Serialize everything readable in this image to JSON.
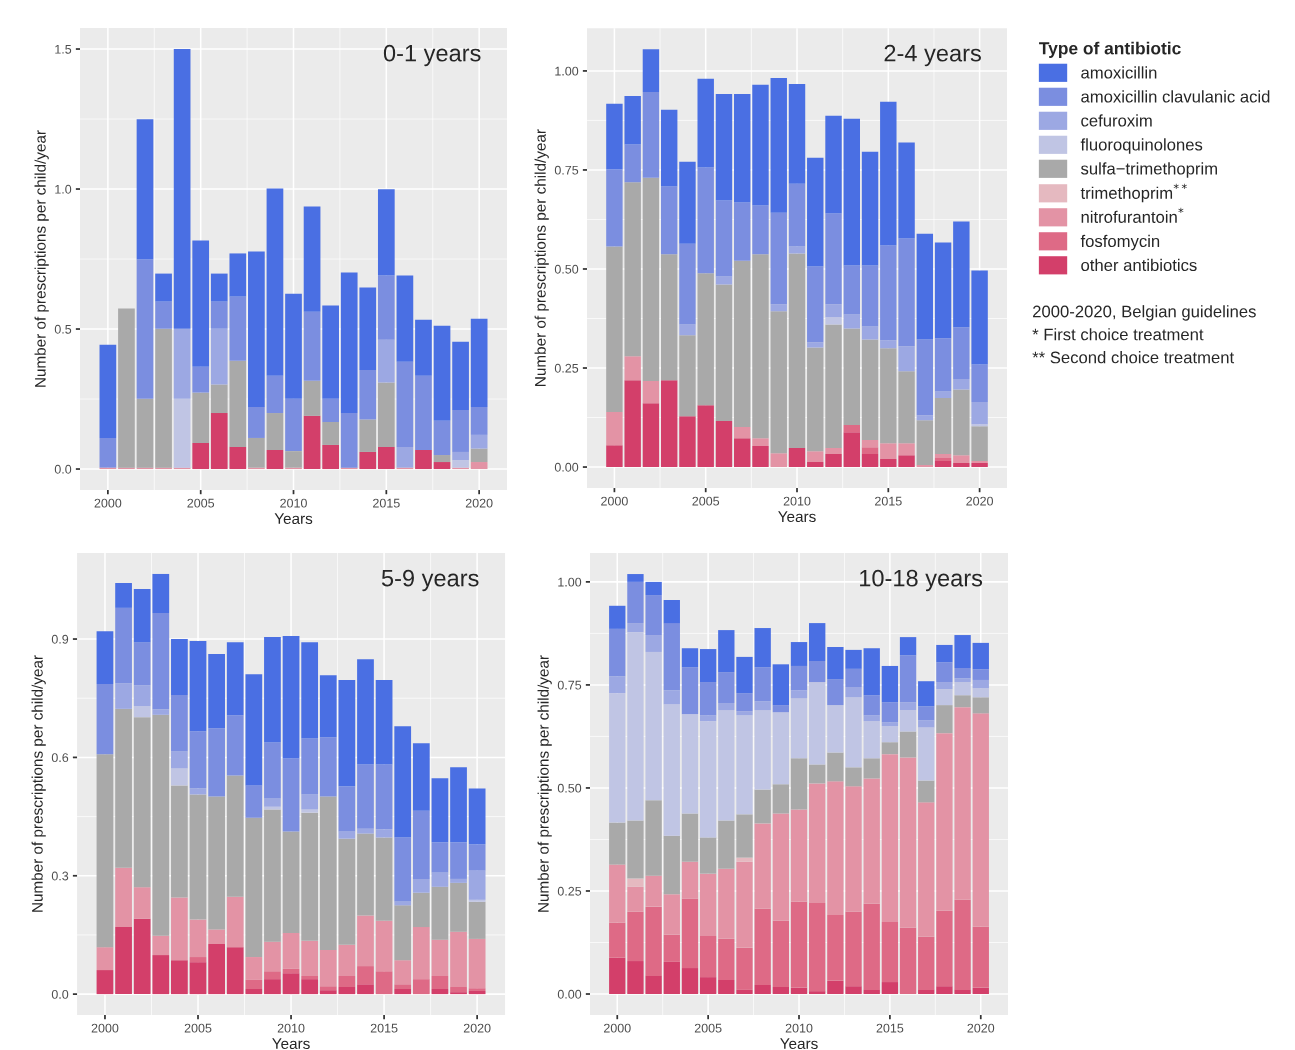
{
  "chart_data": [
    {
      "type": "bar",
      "stacked": true,
      "title": "0-1 years",
      "xlabel": "Years",
      "ylabel": "Number of prescriptions per child/year",
      "grid": true,
      "x": [
        2000,
        2001,
        2002,
        2003,
        2004,
        2005,
        2006,
        2007,
        2008,
        2009,
        2010,
        2011,
        2012,
        2013,
        2014,
        2015,
        2016,
        2017,
        2018,
        2019,
        2020
      ],
      "xlim": [
        1998.5,
        2021.5
      ],
      "xticks": [
        2000,
        2005,
        2010,
        2015,
        2020
      ],
      "ylim": [
        -0.075,
        1.575
      ],
      "yticks": [
        {
          "value": 0,
          "label": "0.0"
        },
        0.5,
        {
          "value": 1,
          "label": "1.0"
        },
        1.5
      ],
      "series": [
        {
          "color": "#d33f6a",
          "values": [
            null,
            null,
            null,
            null,
            null,
            0.093,
            0.2,
            0.079,
            null,
            0.068,
            null,
            0.19,
            0.086,
            null,
            0.061,
            0.079,
            null,
            0.068,
            0.025,
            null,
            null
          ]
        },
        {
          "color": "#e393a5",
          "values": [
            0.005,
            0.005,
            0.005,
            0.005,
            0.005,
            null,
            null,
            null,
            0.005,
            null,
            0.005,
            null,
            null,
            0.005,
            null,
            null,
            0.005,
            null,
            null,
            0.005,
            0.025
          ]
        },
        {
          "color": "#a9a9a9",
          "values": [
            null,
            0.568,
            0.246,
            0.496,
            null,
            0.18,
            0.102,
            0.308,
            0.106,
            0.132,
            0.059,
            0.125,
            0.082,
            null,
            0.116,
            0.23,
            null,
            null,
            0.025,
            null,
            0.048
          ]
        },
        {
          "color": "#c0c5e4",
          "values": [
            null,
            null,
            null,
            null,
            0.246,
            null,
            null,
            null,
            null,
            null,
            null,
            null,
            null,
            null,
            null,
            null,
            null,
            null,
            null,
            0.027,
            null
          ]
        },
        {
          "color": "#9ca8e3",
          "values": [
            null,
            null,
            null,
            null,
            0.25,
            null,
            0.199,
            null,
            null,
            null,
            null,
            null,
            null,
            null,
            null,
            0.153,
            0.074,
            null,
            null,
            0.029,
            0.049
          ]
        },
        {
          "color": "#7b8ee0",
          "values": [
            0.106,
            null,
            0.497,
            0.097,
            null,
            0.092,
            0.097,
            0.229,
            0.111,
            0.133,
            0.187,
            0.247,
            0.083,
            0.195,
            0.177,
            0.229,
            0.304,
            0.265,
            0.122,
            0.15,
            0.1
          ]
        },
        {
          "color": "#4a6fe3",
          "values": [
            0.333,
            null,
            0.501,
            0.1,
            0.999,
            0.451,
            0.1,
            0.154,
            0.555,
            0.669,
            0.375,
            0.376,
            0.333,
            0.502,
            0.294,
            0.308,
            0.308,
            0.2,
            0.34,
            0.244,
            0.315
          ]
        }
      ]
    },
    {
      "type": "bar",
      "stacked": true,
      "title": "2-4 years",
      "xlabel": "Years",
      "ylabel": "Number of prescriptions per child/year",
      "grid": true,
      "legend": "right",
      "legend_title": "Type of antibiotic",
      "annotations": [
        "2000-2020, Belgian guidelines",
        "* First choice treatment",
        "** Second choice treatment"
      ],
      "x": [
        2000,
        2001,
        2002,
        2003,
        2004,
        2005,
        2006,
        2007,
        2008,
        2009,
        2010,
        2011,
        2012,
        2013,
        2014,
        2015,
        2016,
        2017,
        2018,
        2019,
        2020
      ],
      "xlim": [
        1998.5,
        2021.5
      ],
      "xticks": [
        2000,
        2005,
        2010,
        2015,
        2020
      ],
      "ylim": [
        -0.053,
        1.108
      ],
      "yticks": [
        {
          "value": 0,
          "label": "0.00"
        },
        {
          "value": 0.25,
          "label": "0.25"
        },
        {
          "value": 0.5,
          "label": "0.50"
        },
        {
          "value": 0.75,
          "label": "0.75"
        },
        {
          "value": 1,
          "label": "1.00"
        }
      ],
      "series": [
        {
          "name": "other antibiotics",
          "color": "#d33f6a",
          "values": [
            0.055,
            0.219,
            0.161,
            0.219,
            0.128,
            0.156,
            0.116,
            0.073,
            0.053,
            null,
            0.048,
            0.013,
            0.033,
            0.088,
            0.033,
            0.02,
            0.03,
            null,
            0.015,
            0.01,
            0.01
          ]
        },
        {
          "name": "fosfomycin",
          "color": "#de6a86",
          "values": [
            null,
            null,
            null,
            null,
            null,
            null,
            null,
            null,
            null,
            null,
            null,
            null,
            null,
            0.018,
            0.017,
            null,
            null,
            null,
            0.008,
            null,
            null
          ]
        },
        {
          "name": "nitrofurantoin$^{*}$",
          "color": "#e393a5",
          "values": [
            0.084,
            0.061,
            0.056,
            null,
            null,
            null,
            null,
            0.028,
            0.02,
            0.035,
            null,
            0.027,
            0.015,
            null,
            0.018,
            0.04,
            0.03,
            0.005,
            0.01,
            0.02,
            0.005
          ]
        },
        {
          "name": "trimethoprim$^{**}$",
          "color": "#e5b9c0",
          "values": [
            null,
            null,
            null,
            null,
            null,
            null,
            null,
            null,
            null,
            null,
            null,
            null,
            null,
            null,
            null,
            null,
            null,
            null,
            null,
            null,
            null
          ]
        },
        {
          "name": "sulfa−trimethoprim",
          "color": "#a9a9a9",
          "values": [
            0.418,
            0.439,
            0.513,
            0.318,
            0.205,
            0.333,
            0.345,
            0.42,
            0.464,
            0.358,
            0.491,
            0.262,
            0.312,
            0.244,
            0.254,
            0.24,
            0.182,
            0.113,
            0.141,
            0.166,
            0.088
          ]
        },
        {
          "name": "fluoroquinolones",
          "color": "#c0c5e4",
          "values": [
            null,
            null,
            null,
            null,
            null,
            null,
            null,
            null,
            null,
            null,
            null,
            null,
            0.018,
            null,
            null,
            null,
            null,
            null,
            null,
            null,
            0.005
          ]
        },
        {
          "name": "cefuroxim",
          "color": "#9ca8e3",
          "values": [
            null,
            null,
            null,
            null,
            0.027,
            null,
            0.02,
            null,
            null,
            0.018,
            0.018,
            0.013,
            0.033,
            0.035,
            0.033,
            0.02,
            0.063,
            0.013,
            0.017,
            0.026,
            0.056
          ]
        },
        {
          "name": "amoxicillin clavulanic acid",
          "color": "#7b8ee0",
          "values": [
            0.194,
            0.095,
            0.217,
            0.171,
            0.204,
            0.267,
            0.192,
            0.147,
            0.123,
            0.231,
            0.158,
            0.191,
            0.229,
            0.124,
            0.154,
            0.239,
            0.272,
            0.191,
            0.134,
            0.131,
            0.095
          ]
        },
        {
          "name": "amoxicillin",
          "color": "#4a6fe3",
          "values": [
            0.166,
            0.123,
            0.108,
            0.194,
            0.207,
            0.224,
            0.269,
            0.274,
            0.305,
            0.34,
            0.252,
            0.275,
            0.247,
            0.37,
            0.287,
            0.363,
            0.242,
            0.267,
            0.242,
            0.267,
            0.237
          ]
        }
      ]
    },
    {
      "type": "bar",
      "stacked": true,
      "title": "5-9 years",
      "xlabel": "Years",
      "ylabel": "Number of prescriptions per child/year",
      "grid": true,
      "x": [
        2000,
        2001,
        2002,
        2003,
        2004,
        2005,
        2006,
        2007,
        2008,
        2009,
        2010,
        2011,
        2012,
        2013,
        2014,
        2015,
        2016,
        2017,
        2018,
        2019,
        2020
      ],
      "xlim": [
        1998.5,
        2021.5
      ],
      "xticks": [
        2000,
        2005,
        2010,
        2015,
        2020
      ],
      "ylim": [
        -0.053,
        1.118
      ],
      "yticks": [
        {
          "value": 0,
          "label": "0.0"
        },
        0.3,
        0.6,
        0.9
      ],
      "series": [
        {
          "color": "#d33f6a",
          "values": [
            0.061,
            0.17,
            0.191,
            0.099,
            0.086,
            0.081,
            0.127,
            0.119,
            0.013,
            0.038,
            0.053,
            0.038,
            0.01,
            0.018,
            0.025,
            null,
            0.013,
            null,
            0.013,
            0.005,
            0.008
          ]
        },
        {
          "color": "#de6a86",
          "values": [
            null,
            null,
            null,
            null,
            null,
            0.013,
            null,
            null,
            0.023,
            0.02,
            0.011,
            0.008,
            0.01,
            0.028,
            0.046,
            0.058,
            0.012,
            0.038,
            0.033,
            0.013,
            0.007
          ]
        },
        {
          "color": "#e393a5",
          "values": [
            0.058,
            0.15,
            0.08,
            0.049,
            0.159,
            0.095,
            0.037,
            0.128,
            0.058,
            0.075,
            0.091,
            0.089,
            0.092,
            0.079,
            0.128,
            0.128,
            0.061,
            0.132,
            0.092,
            0.14,
            0.125
          ]
        },
        {
          "color": "#a9a9a9",
          "values": [
            0.489,
            0.403,
            0.431,
            0.56,
            0.284,
            0.317,
            0.337,
            0.307,
            0.353,
            0.335,
            0.257,
            0.325,
            0.389,
            0.269,
            0.208,
            0.211,
            0.139,
            0.087,
            0.134,
            0.124,
            0.094
          ]
        },
        {
          "color": "#c0c5e4",
          "values": [
            null,
            null,
            0.028,
            null,
            0.043,
            null,
            null,
            null,
            null,
            0.007,
            null,
            0.008,
            null,
            null,
            null,
            null,
            null,
            null,
            null,
            null,
            0.005
          ]
        },
        {
          "color": "#9ca8e3",
          "values": [
            null,
            0.065,
            0.053,
            0.014,
            0.043,
            0.015,
            null,
            null,
            null,
            0.021,
            null,
            0.038,
            null,
            0.018,
            0.012,
            0.02,
            0.01,
            0.035,
            0.036,
            0.01,
            0.074
          ]
        },
        {
          "color": "#7b8ee0",
          "values": [
            0.178,
            0.191,
            0.109,
            0.244,
            0.143,
            0.145,
            0.173,
            0.153,
            0.082,
            0.142,
            0.185,
            0.142,
            0.15,
            0.114,
            0.163,
            0.165,
            0.162,
            0.173,
            0.076,
            0.092,
            0.066
          ]
        },
        {
          "color": "#4a6fe3",
          "values": [
            0.134,
            0.063,
            0.135,
            0.099,
            0.142,
            0.229,
            0.188,
            0.185,
            0.282,
            0.267,
            0.311,
            0.244,
            0.157,
            0.27,
            0.267,
            0.214,
            0.282,
            0.171,
            0.163,
            0.191,
            0.142
          ]
        }
      ]
    },
    {
      "type": "bar",
      "stacked": true,
      "title": "10-18 years",
      "xlabel": "Years",
      "ylabel": "Number of prescriptions per child/year",
      "grid": true,
      "x": [
        2000,
        2001,
        2002,
        2003,
        2004,
        2005,
        2006,
        2007,
        2008,
        2009,
        2010,
        2011,
        2012,
        2013,
        2014,
        2015,
        2016,
        2017,
        2018,
        2019,
        2020
      ],
      "xlim": [
        1998.5,
        2021.5
      ],
      "xticks": [
        2000,
        2005,
        2010,
        2015,
        2020
      ],
      "ylim": [
        -0.051,
        1.07
      ],
      "yticks": [
        {
          "value": 0,
          "label": "0.00"
        },
        {
          "value": 0.25,
          "label": "0.25"
        },
        {
          "value": 0.5,
          "label": "0.50"
        },
        {
          "value": 0.75,
          "label": "0.75"
        },
        {
          "value": 1,
          "label": "1.00"
        }
      ],
      "series": [
        {
          "color": "#d33f6a",
          "values": [
            0.088,
            0.08,
            0.044,
            0.078,
            0.063,
            0.041,
            0.034,
            0.01,
            0.022,
            0.017,
            0.015,
            0.007,
            0.032,
            0.019,
            0.01,
            0.029,
            null,
            0.01,
            0.019,
            0.01,
            0.015
          ]
        },
        {
          "color": "#de6a86",
          "values": [
            0.085,
            0.12,
            0.168,
            0.066,
            0.168,
            0.1,
            0.1,
            0.102,
            0.185,
            0.161,
            0.209,
            0.214,
            0.16,
            0.181,
            0.209,
            0.146,
            0.161,
            0.129,
            0.183,
            0.219,
            0.148
          ]
        },
        {
          "color": "#e393a5",
          "values": [
            0.141,
            0.06,
            0.075,
            0.098,
            0.09,
            0.151,
            0.17,
            0.209,
            0.207,
            0.26,
            0.224,
            0.29,
            0.324,
            0.304,
            0.304,
            0.407,
            0.413,
            0.326,
            0.431,
            0.467,
            0.518
          ]
        },
        {
          "color": "#e5b9c0",
          "values": [
            null,
            0.02,
            null,
            null,
            null,
            null,
            null,
            0.01,
            null,
            null,
            null,
            null,
            null,
            null,
            null,
            null,
            null,
            null,
            null,
            null,
            null
          ]
        },
        {
          "color": "#a9a9a9",
          "values": [
            0.102,
            0.141,
            0.183,
            0.142,
            0.117,
            0.088,
            0.117,
            0.105,
            0.082,
            0.071,
            0.124,
            0.046,
            0.07,
            0.046,
            0.049,
            0.029,
            0.063,
            0.053,
            0.068,
            0.029,
            0.039
          ]
        },
        {
          "color": "#c0c5e4",
          "values": [
            0.314,
            0.457,
            0.36,
            0.319,
            0.241,
            0.282,
            0.268,
            0.24,
            0.193,
            0.175,
            0.146,
            0.2,
            0.115,
            0.17,
            0.09,
            0.039,
            0.052,
            0.129,
            0.039,
            0.032,
            0.022
          ]
        },
        {
          "color": "#9ca8e3",
          "values": [
            0.041,
            0.022,
            0.041,
            0.034,
            null,
            0.014,
            0.017,
            0.01,
            0.021,
            null,
            0.019,
            null,
            null,
            0.025,
            0.014,
            0.009,
            0.019,
            0.017,
            0.017,
            0.009,
            0.02
          ]
        },
        {
          "color": "#7b8ee0",
          "values": [
            0.115,
            0.1,
            0.097,
            0.163,
            0.114,
            0.081,
            0.075,
            0.044,
            0.083,
            0.017,
            0.059,
            0.051,
            0.063,
            0.044,
            0.049,
            0.049,
            0.114,
            0.034,
            0.048,
            0.025,
            0.026
          ]
        },
        {
          "color": "#4a6fe3",
          "values": [
            0.056,
            0.019,
            0.032,
            0.056,
            0.046,
            0.08,
            0.102,
            0.088,
            0.095,
            0.099,
            0.058,
            0.092,
            0.078,
            0.046,
            0.114,
            0.088,
            0.044,
            0.061,
            0.042,
            0.08,
            0.064
          ]
        }
      ]
    }
  ]
}
